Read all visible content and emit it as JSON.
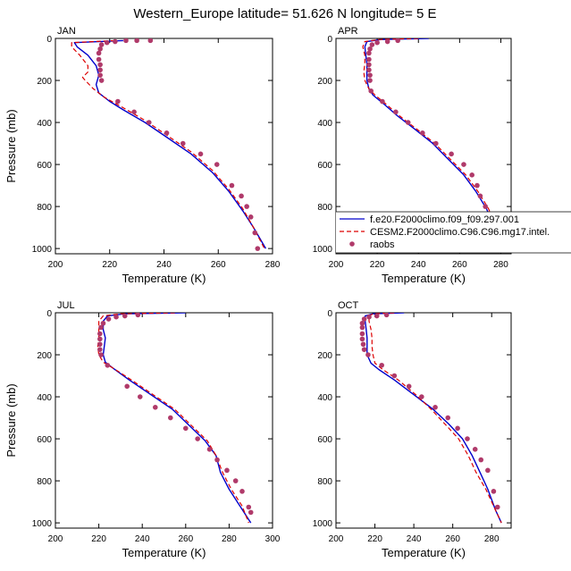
{
  "title": "Western_Europe  latitude= 51.626 N longitude= 5 E",
  "legend": {
    "entries": [
      {
        "label": "f.e20.F2000climo.f09_f09.297.001",
        "color": "#0000cc",
        "style": "solid"
      },
      {
        "label": "CESM2.F2000climo.C96.C96.mg17.intel.",
        "color": "#dd0000",
        "style": "dashed"
      },
      {
        "label": "raobs",
        "color": "#b03a6a",
        "style": "dot"
      }
    ]
  },
  "chart_data": [
    {
      "type": "line",
      "panel": "JAN",
      "xlabel": "Temperature (K)",
      "ylabel": "Pressure (mb)",
      "xlim": [
        200,
        280
      ],
      "ylim": [
        0,
        1025
      ],
      "y_inverted": true,
      "xticks": [
        200,
        220,
        240,
        260,
        280
      ],
      "yticks": [
        0,
        200,
        400,
        600,
        800,
        1000
      ],
      "series": [
        {
          "name": "f.e20.F2000climo.f09_f09.297.001",
          "x": [
            225,
            207,
            208,
            212,
            215,
            216,
            215,
            216,
            220,
            225,
            233,
            241,
            250,
            258,
            264,
            269,
            273,
            277.5
          ],
          "y": [
            10,
            20,
            40,
            80,
            130,
            175,
            220,
            260,
            300,
            340,
            400,
            470,
            550,
            640,
            730,
            820,
            900,
            1000
          ]
        },
        {
          "name": "CESM2.F2000climo.C96.C96.mg17.intel.",
          "x": [
            222,
            206,
            206,
            209,
            212,
            212,
            210,
            211,
            214,
            218,
            225,
            233,
            241,
            250,
            258,
            264,
            269,
            273,
            277
          ],
          "y": [
            10,
            20,
            40,
            80,
            130,
            160,
            185,
            200,
            240,
            280,
            330,
            390,
            460,
            540,
            630,
            720,
            810,
            900,
            1000
          ]
        },
        {
          "name": "raobs",
          "x": [
            235,
            230,
            226,
            222,
            219,
            217,
            216.5,
            216,
            216,
            216.5,
            216.5,
            216.5,
            217,
            223,
            229,
            234.5,
            241,
            247,
            253.5,
            259.5,
            265,
            268.5,
            270.5,
            272,
            273.5,
            274.5
          ],
          "y": [
            10,
            10,
            10,
            15,
            20,
            30,
            50,
            70,
            100,
            125,
            150,
            175,
            200,
            300,
            350,
            400,
            450,
            500,
            550,
            600,
            700,
            750,
            800,
            850,
            925,
            1000
          ]
        }
      ]
    },
    {
      "type": "line",
      "panel": "APR",
      "xlabel": "Temperature (K)",
      "ylabel": "",
      "xlim": [
        200,
        285
      ],
      "ylim": [
        0,
        1025
      ],
      "y_inverted": true,
      "xticks": [
        200,
        220,
        240,
        260,
        280
      ],
      "yticks": [
        0,
        200,
        400,
        600,
        800,
        1000
      ],
      "series": [
        {
          "name": "f.e20.F2000climo.f09_f09.297.001",
          "x": [
            245,
            222,
            215,
            214,
            214.5,
            215,
            215,
            215,
            216,
            218,
            223,
            230,
            238,
            247,
            255,
            262,
            268,
            273,
            277,
            281
          ],
          "y": [
            0,
            5,
            15,
            40,
            80,
            120,
            160,
            200,
            240,
            270,
            310,
            370,
            430,
            500,
            580,
            650,
            730,
            810,
            900,
            1000
          ]
        },
        {
          "name": "CESM2.F2000climo.C96.C96.mg17.intel.",
          "x": [
            240,
            221,
            214,
            213,
            214,
            214,
            213.5,
            214,
            216,
            219,
            224,
            231,
            239,
            248,
            256,
            263,
            269,
            274,
            278,
            281
          ],
          "y": [
            0,
            5,
            15,
            40,
            80,
            120,
            160,
            200,
            240,
            270,
            310,
            370,
            430,
            500,
            580,
            650,
            730,
            810,
            900,
            1000
          ]
        },
        {
          "name": "raobs",
          "x": [
            230,
            225,
            220,
            217.5,
            216.5,
            216,
            216,
            216,
            216,
            216.5,
            216.5,
            217,
            222.5,
            229,
            235,
            242,
            248.5,
            256,
            262,
            266,
            268.5,
            270,
            272.5,
            276,
            279.5
          ],
          "y": [
            10,
            15,
            20,
            30,
            50,
            70,
            100,
            125,
            150,
            175,
            200,
            250,
            300,
            350,
            400,
            450,
            500,
            550,
            600,
            650,
            700,
            750,
            800,
            850,
            925
          ]
        }
      ]
    },
    {
      "type": "line",
      "panel": "JUL",
      "xlabel": "Temperature (K)",
      "ylabel": "Pressure (mb)",
      "xlim": [
        200,
        300
      ],
      "ylim": [
        0,
        1025
      ],
      "y_inverted": true,
      "xticks": [
        200,
        220,
        240,
        260,
        280,
        300
      ],
      "yticks": [
        0,
        200,
        400,
        600,
        800,
        1000
      ],
      "series": [
        {
          "name": "f.e20.F2000climo.f09_f09.297.001",
          "x": [
            260,
            232,
            224,
            222,
            222,
            223,
            222.5,
            222,
            223,
            226,
            234,
            244,
            254,
            262,
            269,
            274,
            276,
            280,
            285,
            290
          ],
          "y": [
            0,
            5,
            15,
            40,
            80,
            120,
            160,
            200,
            235,
            260,
            320,
            390,
            460,
            540,
            610,
            680,
            760,
            840,
            920,
            1000
          ]
        },
        {
          "name": "CESM2.F2000climo.C96.C96.mg17.intel.",
          "x": [
            255,
            230,
            222,
            220,
            220,
            220,
            219.5,
            220,
            222,
            226,
            235,
            245,
            255,
            263,
            270,
            274,
            277,
            281,
            286,
            289
          ],
          "y": [
            0,
            5,
            15,
            40,
            80,
            120,
            160,
            200,
            235,
            260,
            320,
            390,
            460,
            540,
            610,
            680,
            760,
            840,
            920,
            1000
          ]
        },
        {
          "name": "raobs",
          "x": [
            238,
            232,
            228,
            224.5,
            222,
            221,
            220.5,
            220.5,
            220.5,
            220.5,
            221,
            224,
            233,
            239,
            246,
            253,
            260,
            265.5,
            271,
            274.5,
            279,
            283,
            286,
            289,
            290
          ],
          "y": [
            10,
            15,
            20,
            30,
            50,
            70,
            100,
            125,
            150,
            175,
            200,
            250,
            350,
            400,
            450,
            500,
            550,
            600,
            650,
            700,
            750,
            800,
            850,
            925,
            950
          ]
        }
      ]
    },
    {
      "type": "line",
      "panel": "OCT",
      "xlabel": "Temperature (K)",
      "ylabel": "",
      "xlim": [
        200,
        290
      ],
      "ylim": [
        0,
        1025
      ],
      "y_inverted": true,
      "xticks": [
        200,
        220,
        240,
        260,
        280
      ],
      "yticks": [
        0,
        200,
        400,
        600,
        800,
        1000
      ],
      "series": [
        {
          "name": "f.e20.F2000climo.f09_f09.297.001",
          "x": [
            235,
            219,
            215,
            215,
            215.5,
            216,
            216,
            216,
            218,
            222,
            230,
            240,
            250,
            258,
            265,
            270,
            274,
            278,
            282,
            285
          ],
          "y": [
            0,
            5,
            15,
            40,
            80,
            120,
            160,
            200,
            240,
            270,
            320,
            390,
            460,
            530,
            600,
            680,
            760,
            840,
            940,
            1000
          ]
        },
        {
          "name": "CESM2.F2000climo.C96.C96.mg17.intel.",
          "x": [
            230,
            219,
            217,
            217,
            218,
            218.5,
            218.5,
            219,
            220,
            224,
            232,
            241,
            249,
            256,
            263,
            268,
            272,
            277,
            281,
            285
          ],
          "y": [
            0,
            5,
            15,
            40,
            80,
            120,
            160,
            200,
            240,
            270,
            320,
            390,
            460,
            530,
            600,
            680,
            760,
            840,
            920,
            1000
          ]
        },
        {
          "name": "raobs",
          "x": [
            226,
            221,
            217,
            214.5,
            213.5,
            213.5,
            213.5,
            213.5,
            214,
            214.5,
            216.5,
            223.5,
            230,
            237.5,
            244,
            251,
            257.5,
            262.5,
            267.5,
            271.5,
            274.5,
            278,
            281,
            283
          ],
          "y": [
            10,
            15,
            20,
            30,
            50,
            70,
            100,
            125,
            150,
            175,
            200,
            250,
            300,
            350,
            400,
            450,
            500,
            550,
            600,
            650,
            700,
            750,
            850,
            925
          ]
        }
      ]
    }
  ]
}
